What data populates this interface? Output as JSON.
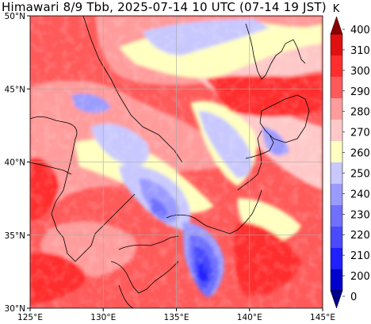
{
  "title": "Himawari 8/9 Tbb, 2025-07-14 10 UTC (07-14 19 JST)",
  "map": {
    "lon_range": [
      125,
      145
    ],
    "lat_range": [
      30,
      50
    ],
    "lon_ticks": [
      "125°E",
      "130°E",
      "135°E",
      "140°E",
      "145°E"
    ],
    "lat_ticks": [
      "30°N",
      "35°N",
      "40°N",
      "45°N",
      "50°N"
    ],
    "gridlines": true
  },
  "colorbar": {
    "unit": "K",
    "levels": [
      "0",
      "200",
      "210",
      "220",
      "230",
      "240",
      "250",
      "260",
      "270",
      "280",
      "290",
      "300",
      "310",
      "400"
    ],
    "colors": [
      "#00008b",
      "#0000cd",
      "#2020ff",
      "#4a4aff",
      "#7070ff",
      "#9b9bff",
      "#c8c8ff",
      "#ffffc0",
      "#ffc8c8",
      "#ff9b9b",
      "#ff5a5a",
      "#ff2d2d",
      "#e01010",
      "#8b0000"
    ],
    "extend": "both"
  },
  "colors": {
    "background_warm": "#ff5a5a",
    "cloud_cold": "#2020ff",
    "coastline": "#000000",
    "grid": "#aaaaaa"
  }
}
